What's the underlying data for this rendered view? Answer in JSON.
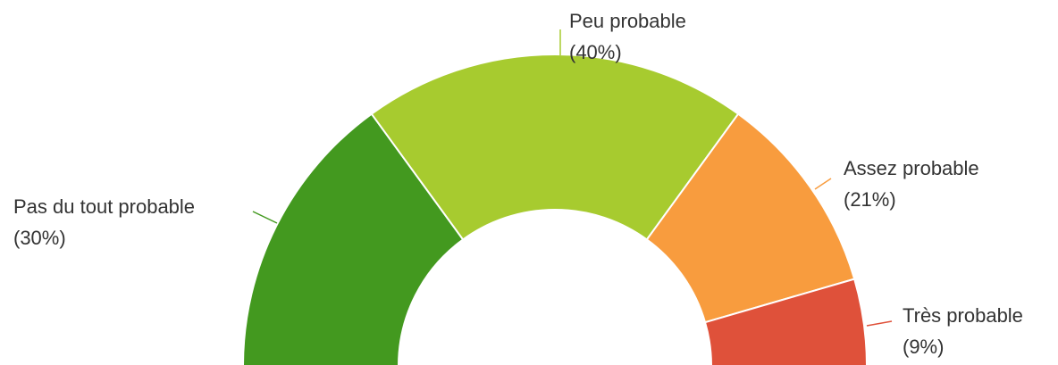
{
  "chart_data": {
    "type": "pie",
    "categories": [
      "Pas du tout probable",
      "Peu probable",
      "Assez probable",
      "Très probable"
    ],
    "values": [
      30,
      40,
      21,
      9
    ],
    "value_labels": [
      "(30%)",
      "(40%)",
      "(21%)",
      "(9%)"
    ],
    "colors": [
      "#43991f",
      "#a7cb2f",
      "#f89c3e",
      "#df513a"
    ]
  }
}
